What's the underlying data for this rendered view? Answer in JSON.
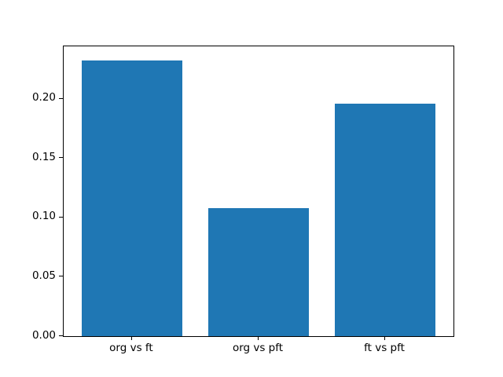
{
  "chart_data": {
    "type": "bar",
    "title": "",
    "xlabel": "",
    "ylabel": "",
    "categories": [
      "org vs ft",
      "org vs pft",
      "ft vs pft"
    ],
    "values": [
      0.232,
      0.108,
      0.196
    ],
    "bar_color": "#1f77b4",
    "spine_color": "#000000",
    "background_color": "#ffffff",
    "ylim": [
      0,
      0.244
    ],
    "xlim": [
      -0.54,
      2.54
    ],
    "bar_width": 0.8,
    "yticks": [
      0.0,
      0.05,
      0.1,
      0.15,
      0.2
    ],
    "ytick_labels": [
      "0.00",
      "0.05",
      "0.10",
      "0.15",
      "0.20"
    ],
    "grid": false,
    "legend": null
  }
}
